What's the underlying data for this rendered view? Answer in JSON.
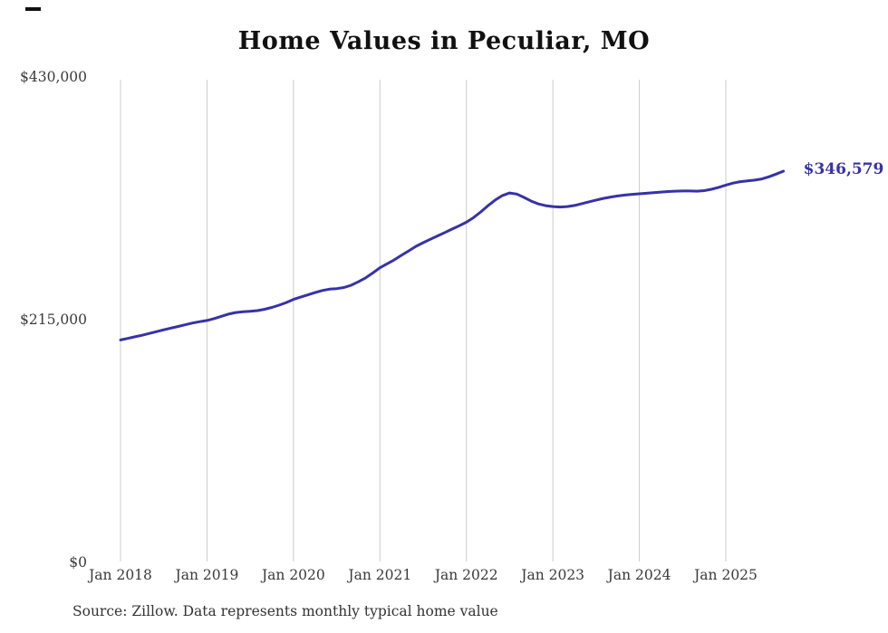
{
  "page": {
    "title": "Home Values in Peculiar, MO",
    "source_note": "Source: Zillow. Data represents monthly typical home value"
  },
  "chart_data": {
    "type": "line",
    "title": "Home Values in Peculiar, MO",
    "series_name": "Monthly typical home value",
    "unit": "USD",
    "start_month": "2018-01",
    "end_month": "2025-09",
    "ylim": [
      0,
      430000
    ],
    "grid": "vertical-only",
    "line_color": "#3732a8",
    "grid_color": "#cccccc",
    "end_label": "$346,579",
    "latest_value": 346579,
    "y_ticks": [
      {
        "value": 0,
        "label": "$0"
      },
      {
        "value": 215000,
        "label": "$215,000"
      },
      {
        "value": 430000,
        "label": "$430,000"
      }
    ],
    "x_ticks": [
      {
        "month_index": 0,
        "label": "Jan 2018"
      },
      {
        "month_index": 12,
        "label": "Jan 2019"
      },
      {
        "month_index": 24,
        "label": "Jan 2020"
      },
      {
        "month_index": 36,
        "label": "Jan 2021"
      },
      {
        "month_index": 48,
        "label": "Jan 2022"
      },
      {
        "month_index": 60,
        "label": "Jan 2023"
      },
      {
        "month_index": 72,
        "label": "Jan 2024"
      },
      {
        "month_index": 84,
        "label": "Jan 2025"
      }
    ],
    "values": [
      197000,
      198400,
      199800,
      201200,
      202800,
      204400,
      206000,
      207500,
      209000,
      210500,
      212000,
      213200,
      214300,
      216000,
      218000,
      220000,
      221300,
      222000,
      222500,
      223000,
      224200,
      225800,
      227800,
      230200,
      233000,
      235000,
      237000,
      239000,
      240800,
      242000,
      242500,
      243500,
      245500,
      248500,
      252000,
      256300,
      261000,
      264500,
      268000,
      272000,
      276000,
      280000,
      283200,
      286200,
      289200,
      292200,
      295200,
      298200,
      301300,
      305500,
      310500,
      316000,
      321000,
      325000,
      327200,
      326300,
      323300,
      320000,
      317500,
      316000,
      315200,
      314800,
      315200,
      316200,
      317800,
      319400,
      321000,
      322400,
      323600,
      324600,
      325400,
      326000,
      326500,
      327000,
      327500,
      328000,
      328500,
      328800,
      329000,
      329000,
      328800,
      329300,
      330500,
      332200,
      334200,
      336000,
      337300,
      338000,
      338600,
      339700,
      341600,
      344000,
      346579
    ],
    "source": "Source: Zillow. Data represents monthly typical home value"
  }
}
